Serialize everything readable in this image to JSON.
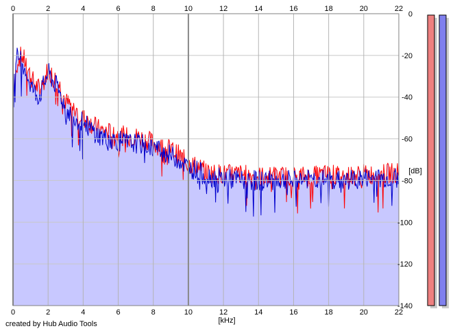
{
  "footer": {
    "credit": "created by Hub Audio Tools"
  },
  "chart_data": {
    "type": "area",
    "title": "",
    "xlabel": "[kHz]",
    "ylabel": "[dB]",
    "xlim": [
      0,
      22
    ],
    "ylim": [
      -140,
      0
    ],
    "x_ticks": [
      0,
      2,
      4,
      6,
      8,
      10,
      12,
      14,
      16,
      18,
      20,
      22
    ],
    "y_ticks": [
      0,
      -20,
      -40,
      -60,
      -80,
      -100,
      -120,
      -140
    ],
    "grid": true,
    "legend": "none",
    "series": [
      {
        "color": "#ff0000",
        "x": [
          0,
          0.25,
          0.5,
          0.75,
          1,
          1.25,
          1.5,
          1.75,
          2,
          2.25,
          2.5,
          2.75,
          3,
          3.5,
          4,
          4.5,
          5,
          5.5,
          6,
          6.5,
          7,
          7.5,
          8,
          8.5,
          9,
          9.5,
          10,
          10.5,
          11,
          12,
          13,
          14,
          15,
          16,
          17,
          18,
          19,
          20,
          21,
          22
        ],
        "values": [
          -38,
          -22,
          -20,
          -24,
          -30,
          -34,
          -36,
          -33,
          -26,
          -30,
          -32,
          -36,
          -42,
          -46,
          -50,
          -53,
          -56,
          -57,
          -58,
          -59,
          -59,
          -60,
          -62,
          -64,
          -65,
          -68,
          -72,
          -73,
          -76,
          -77,
          -77,
          -78,
          -78,
          -78,
          -78,
          -77,
          -78,
          -77,
          -77,
          -76
        ]
      },
      {
        "color": "#0000cc",
        "x": [
          0,
          0.25,
          0.5,
          0.75,
          1,
          1.25,
          1.5,
          1.75,
          2,
          2.25,
          2.5,
          2.75,
          3,
          3.5,
          4,
          4.5,
          5,
          5.5,
          6,
          6.5,
          7,
          7.5,
          8,
          8.5,
          9,
          9.5,
          10,
          10.5,
          11,
          12,
          13,
          14,
          15,
          16,
          17,
          18,
          19,
          20,
          21,
          22
        ],
        "values": [
          -36,
          -20,
          -22,
          -28,
          -34,
          -38,
          -40,
          -34,
          -28,
          -32,
          -35,
          -40,
          -46,
          -50,
          -52,
          -56,
          -59,
          -60,
          -61,
          -62,
          -62,
          -63,
          -64,
          -66,
          -68,
          -70,
          -74,
          -75,
          -78,
          -79,
          -80,
          -80,
          -80,
          -80,
          -79,
          -80,
          -80,
          -79,
          -79,
          -79
        ]
      }
    ],
    "channel_meters": [
      {
        "color": "#ee8080"
      },
      {
        "color": "#8080ee"
      }
    ],
    "fill_color": "#c8c8ff"
  }
}
